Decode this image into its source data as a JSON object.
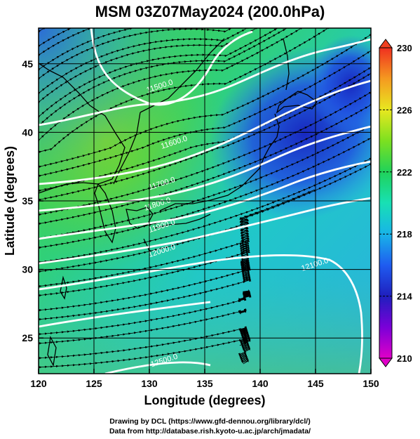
{
  "title": "MSM 03Z07May2024 (200.0hPa)",
  "chart_data": {
    "type": "map",
    "xlabel": "Longitude (degrees)",
    "ylabel": "Latitude  (degrees)",
    "xlim": [
      120,
      150
    ],
    "ylim": [
      22.4,
      47.6
    ],
    "x_ticks": [
      120,
      125,
      130,
      135,
      140,
      145,
      150
    ],
    "y_ticks": [
      25,
      30,
      35,
      40,
      45
    ],
    "grid": true,
    "colorbar": {
      "label": "",
      "min": 210,
      "max": 230,
      "ticks": [
        210,
        214,
        218,
        222,
        226,
        230
      ],
      "extend": "both"
    },
    "fields": [
      "temperature (shaded)",
      "geopotential height contours (white)",
      "wind streamlines (black)"
    ],
    "contour_labels": [
      {
        "text": "11500.0",
        "lon": 131.0,
        "lat": 43.2
      },
      {
        "text": "11600.0",
        "lon": 132.3,
        "lat": 39.1
      },
      {
        "text": "11700.0",
        "lon": 131.2,
        "lat": 36.1
      },
      {
        "text": "11800.0",
        "lon": 130.8,
        "lat": 34.6
      },
      {
        "text": "11900.0",
        "lon": 131.2,
        "lat": 33.0
      },
      {
        "text": "12000.0",
        "lon": 131.2,
        "lat": 31.2
      },
      {
        "text": "12100.0",
        "lon": 145.0,
        "lat": 30.2
      },
      {
        "text": "12500.0",
        "lon": 131.4,
        "lat": 23.2
      }
    ]
  },
  "footer": {
    "line1": "Drawing by DCL (https://www.gfd-dennou.org/library/dcl/)",
    "line2": "Data from http://database.rish.kyoto-u.ac.jp/arch/jmadata/"
  }
}
